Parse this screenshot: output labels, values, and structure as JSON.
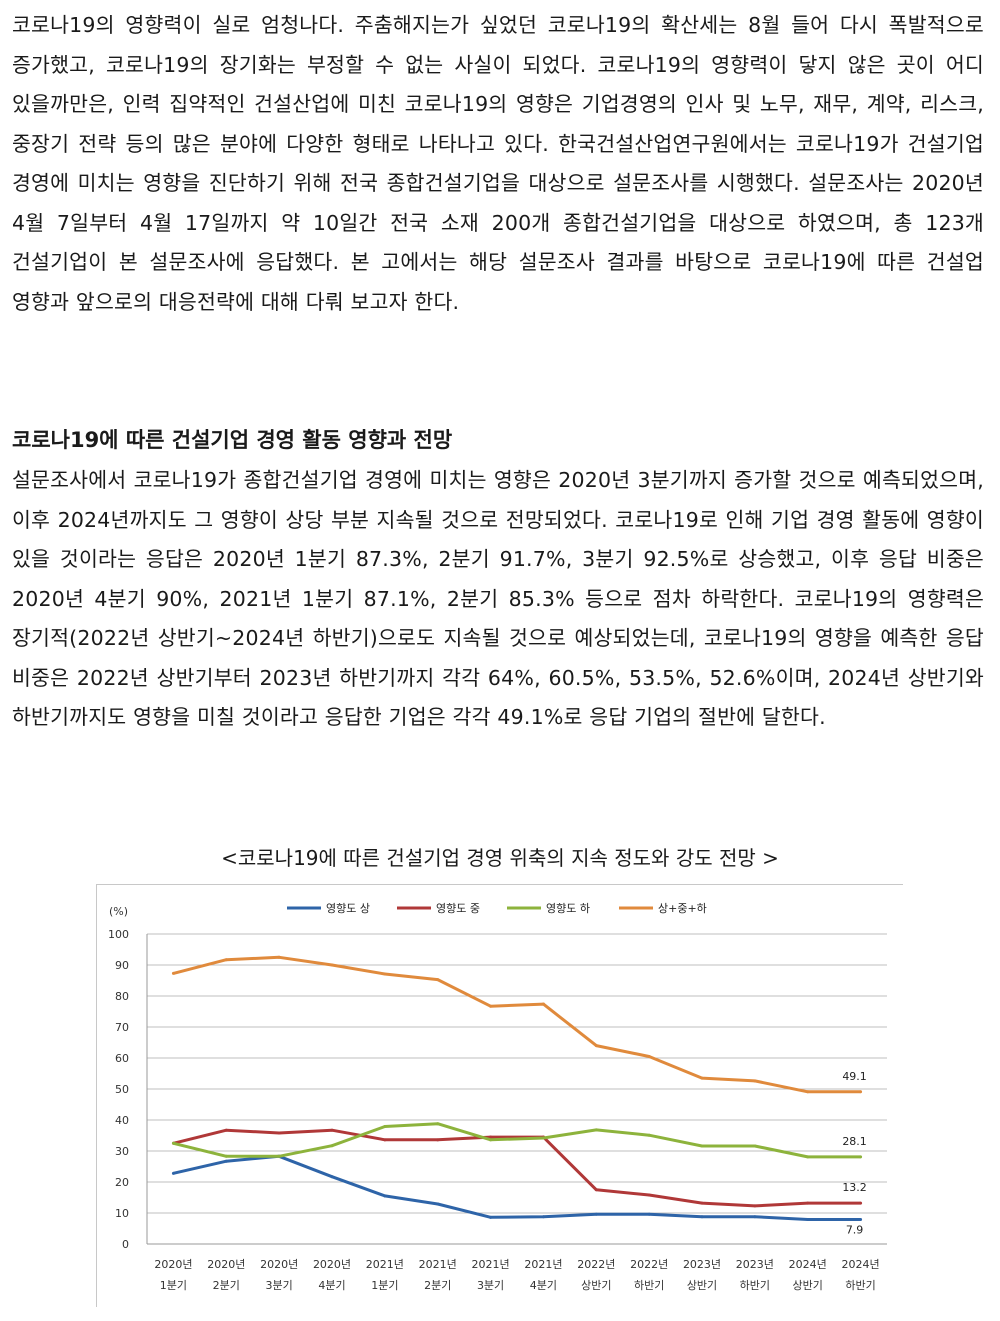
{
  "document": {
    "paragraph1": "코로나19의 영향력이 실로 엄청나다. 주춤해지는가 싶었던 코로나19의 확산세는 8월 들어 다시 폭발적으로 증가했고, 코로나19의 장기화는 부정할 수 없는 사실이 되었다. 코로나19의 영향력이 닿지 않은 곳이 어디 있을까만은, 인력 집약적인 건설산업에 미친 코로나19의 영향은 기업경영의 인사 및 노무, 재무, 계약, 리스크, 중장기 전략 등의 많은 분야에 다양한 형태로 나타나고 있다. 한국건설산업연구원에서는 코로나19가 건설기업 경영에 미치는 영향을 진단하기 위해 전국 종합건설기업을 대상으로 설문조사를 시행했다. 설문조사는 2020년 4월 7일부터 4월 17일까지 약 10일간 전국 소재 200개 종합건설기업을 대상으로 하였으며, 총 123개 건설기업이 본 설문조사에 응답했다. 본 고에서는 해당 설문조사 결과를 바탕으로 코로나19에 따른 건설업 영향과 앞으로의 대응전략에 대해 다뤄 보고자 한다.",
    "heading": "코로나19에 따른 건설기업 경영 활동 영향과 전망",
    "paragraph2": "설문조사에서 코로나19가 종합건설기업 경영에 미치는 영향은 2020년 3분기까지 증가할 것으로 예측되었으며, 이후 2024년까지도 그 영향이 상당 부분 지속될 것으로 전망되었다. 코로나19로 인해 기업 경영 활동에 영향이 있을 것이라는 응답은 2020년 1분기 87.3%, 2분기 91.7%, 3분기 92.5%로 상승했고, 이후 응답 비중은 2020년 4분기 90%, 2021년 1분기 87.1%, 2분기 85.3% 등으로 점차 하락한다. 코로나19의 영향력은 장기적(2022년 상반기~2024년 하반기)으로도 지속될 것으로 예상되었는데, 코로나19의 영향을 예측한 응답 비중은 2022년 상반기부터 2023년 하반기까지 각각 64%, 60.5%, 53.5%, 52.6%이며, 2024년 상반기와 하반기까지도 영향을 미칠 것이라고 응답한 기업은 각각 49.1%로 응답 기업의 절반에 달한다.",
    "chart_caption": "<코로나19에 따른 건설기업 경영 위축의 지속 정도와 강도 전망 >"
  },
  "chart_data": {
    "type": "line",
    "title": "",
    "ylabel": "(%)",
    "xlabel": "",
    "ylim": [
      0,
      100
    ],
    "yticks": [
      0,
      10,
      20,
      30,
      40,
      50,
      60,
      70,
      80,
      90,
      100
    ],
    "grid": true,
    "legend_position": "top-center",
    "categories": [
      [
        "2020년",
        "1분기"
      ],
      [
        "2020년",
        "2분기"
      ],
      [
        "2020년",
        "3분기"
      ],
      [
        "2020년",
        "4분기"
      ],
      [
        "2021년",
        "1분기"
      ],
      [
        "2021년",
        "2분기"
      ],
      [
        "2021년",
        "3분기"
      ],
      [
        "2021년",
        "4분기"
      ],
      [
        "2022년",
        "상반기"
      ],
      [
        "2022년",
        "하반기"
      ],
      [
        "2023년",
        "상반기"
      ],
      [
        "2023년",
        "하반기"
      ],
      [
        "2024년",
        "상반기"
      ],
      [
        "2024년",
        "하반기"
      ]
    ],
    "series": [
      {
        "name": "영향도 상",
        "color": "#2e64a8",
        "values": [
          22.8,
          26.7,
          28.3,
          21.7,
          15.5,
          12.9,
          8.6,
          8.8,
          9.6,
          9.6,
          8.8,
          8.8,
          7.9,
          7.9
        ]
      },
      {
        "name": "영향도 중",
        "color": "#b03838",
        "values": [
          32.5,
          36.7,
          35.8,
          36.7,
          33.6,
          33.6,
          34.5,
          34.5,
          17.5,
          15.8,
          13.2,
          12.3,
          13.2,
          13.2
        ]
      },
      {
        "name": "영향도 하",
        "color": "#8db33c",
        "values": [
          32.5,
          28.3,
          28.3,
          31.7,
          37.9,
          38.8,
          33.6,
          34.2,
          36.8,
          35.1,
          31.6,
          31.6,
          28.1,
          28.1
        ]
      },
      {
        "name": "상+중+하",
        "color": "#e08a3c",
        "values": [
          87.3,
          91.7,
          92.5,
          90.0,
          87.1,
          85.3,
          76.7,
          77.4,
          64.0,
          60.5,
          53.5,
          52.6,
          49.1,
          49.1
        ]
      }
    ],
    "data_labels": [
      "49.1",
      "28.1",
      "13.2",
      "7.9"
    ]
  }
}
